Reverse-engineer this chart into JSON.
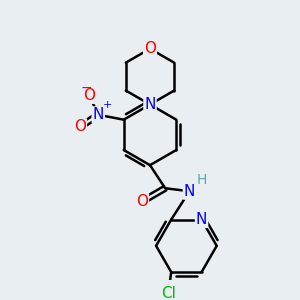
{
  "background_color": "#e8eef2",
  "bond_color": "#000000",
  "bond_width": 1.8,
  "atom_colors": {
    "O": "#ff0000",
    "N": "#0000ff",
    "Cl": "#00bb00",
    "C": "#000000",
    "H": "#55aaaa"
  },
  "font_size": 10,
  "fig_width": 3.0,
  "fig_height": 3.0
}
